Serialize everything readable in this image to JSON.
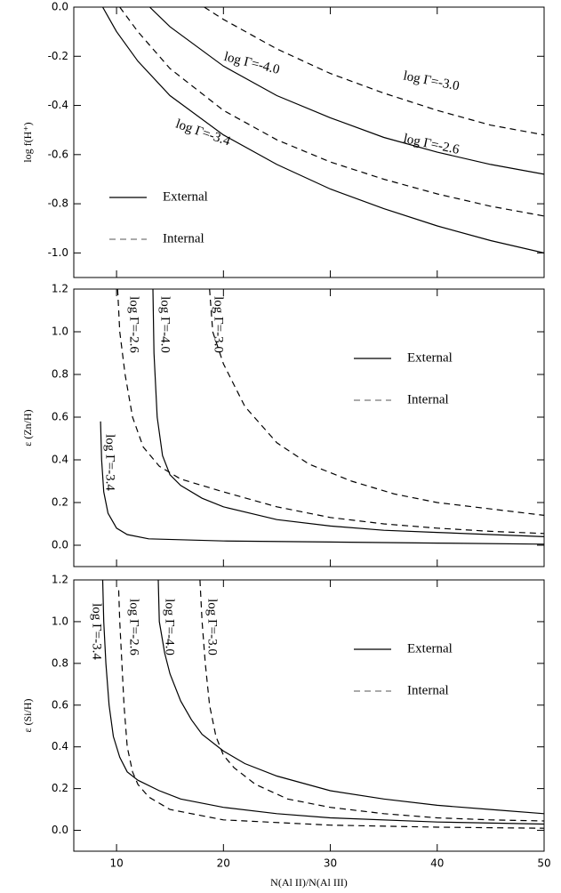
{
  "chart_data": [
    {
      "type": "line",
      "ylabel": "log f(H⁺)",
      "xlim": [
        6,
        50
      ],
      "xticks": [
        10,
        20,
        30,
        40,
        50
      ],
      "xtick_labels": false,
      "ylim": [
        -1.1,
        0.0
      ],
      "yticks": [
        {
          "value": 0,
          "label": "0.0"
        },
        -0.2,
        -0.4,
        -0.6,
        -0.8,
        {
          "value": -1,
          "label": "-1.0"
        }
      ],
      "legend_position": "lower left",
      "color": "#000000",
      "legend": [
        {
          "name": "External",
          "dash": "solid"
        },
        {
          "name": "Internal",
          "dash": "dashed"
        }
      ],
      "series": [
        {
          "name": "log Γ=-3.4",
          "dash": "solid",
          "x": [
            8.7,
            10,
            12,
            15,
            20,
            25,
            30,
            35,
            40,
            45,
            50
          ],
          "values": [
            0,
            -0.1,
            -0.22,
            -0.36,
            -0.52,
            -0.64,
            -0.74,
            -0.82,
            -0.89,
            -0.95,
            -1.0
          ]
        },
        {
          "name": "log Γ=-4.0",
          "dash": "solid",
          "x": [
            13.1,
            15,
            20,
            25,
            30,
            35,
            40,
            45,
            50
          ],
          "values": [
            0,
            -0.08,
            -0.24,
            -0.36,
            -0.45,
            -0.53,
            -0.59,
            -0.64,
            -0.68
          ]
        },
        {
          "name": "log Γ=-2.6",
          "dash": "dashed",
          "x": [
            10.3,
            12,
            15,
            20,
            25,
            30,
            35,
            40,
            45,
            50
          ],
          "values": [
            0,
            -0.1,
            -0.25,
            -0.42,
            -0.54,
            -0.63,
            -0.7,
            -0.76,
            -0.81,
            -0.85
          ]
        },
        {
          "name": "log Γ=-3.0",
          "dash": "dashed",
          "x": [
            18.2,
            20,
            25,
            30,
            35,
            40,
            45,
            50
          ],
          "values": [
            0,
            -0.05,
            -0.17,
            -0.27,
            -0.35,
            -0.42,
            -0.48,
            -0.52
          ]
        }
      ]
    },
    {
      "type": "line",
      "ylabel": "ε (Zn/H)",
      "xlim": [
        6,
        50
      ],
      "xticks": [
        10,
        20,
        30,
        40,
        50
      ],
      "xtick_labels": false,
      "ylim": [
        -0.1,
        1.2
      ],
      "yticks": [
        {
          "value": 0,
          "label": "0.0"
        },
        0.2,
        0.4,
        0.6,
        0.8,
        {
          "value": 1,
          "label": "1.0"
        },
        1.2
      ],
      "legend_position": "upper right",
      "color": "#000000",
      "legend": [
        {
          "name": "External",
          "dash": "solid"
        },
        {
          "name": "Internal",
          "dash": "dashed"
        }
      ],
      "series": [
        {
          "name": "log Γ=-2.6",
          "dash": "dashed",
          "x": [
            10.1,
            10.3,
            10.8,
            11.5,
            12.5,
            14,
            16,
            20,
            25,
            30,
            35,
            40,
            45,
            50
          ],
          "values": [
            1.2,
            1.0,
            0.8,
            0.6,
            0.46,
            0.37,
            0.31,
            0.25,
            0.18,
            0.13,
            0.1,
            0.08,
            0.065,
            0.055
          ]
        },
        {
          "name": "log Γ=-4.0",
          "dash": "solid",
          "x": [
            13.4,
            13.5,
            13.8,
            14.3,
            15,
            16,
            18,
            20,
            25,
            30,
            35,
            40,
            45,
            50
          ],
          "values": [
            1.2,
            0.9,
            0.6,
            0.42,
            0.33,
            0.28,
            0.22,
            0.18,
            0.12,
            0.09,
            0.07,
            0.06,
            0.05,
            0.04
          ]
        },
        {
          "name": "log Γ=-3.0",
          "dash": "dashed",
          "x": [
            18.7,
            19,
            20,
            22,
            25,
            28,
            32,
            36,
            40,
            45,
            50
          ],
          "values": [
            1.2,
            1.0,
            0.85,
            0.65,
            0.48,
            0.38,
            0.3,
            0.24,
            0.2,
            0.17,
            0.14
          ]
        },
        {
          "name": "log Γ=-3.4",
          "dash": "solid",
          "x": [
            8.5,
            8.6,
            8.8,
            9.2,
            10,
            11,
            13,
            20,
            30,
            40,
            50
          ],
          "values": [
            0.58,
            0.4,
            0.25,
            0.15,
            0.08,
            0.05,
            0.03,
            0.02,
            0.015,
            0.01,
            0.005
          ]
        }
      ]
    },
    {
      "type": "line",
      "ylabel": "ε (Si/H)",
      "xlabel": "N(Al II)/N(Al III)",
      "xlim": [
        6,
        50
      ],
      "xticks": [
        10,
        20,
        30,
        40,
        50
      ],
      "xtick_labels": true,
      "ylim": [
        -0.1,
        1.2
      ],
      "yticks": [
        {
          "value": 0,
          "label": "0.0"
        },
        0.2,
        0.4,
        0.6,
        0.8,
        {
          "value": 1,
          "label": "1.0"
        },
        1.2
      ],
      "legend_position": "upper right",
      "color": "#000000",
      "legend": [
        {
          "name": "External",
          "dash": "solid"
        },
        {
          "name": "Internal",
          "dash": "dashed"
        }
      ],
      "series": [
        {
          "name": "log Γ=-2.6",
          "dash": "dashed",
          "x": [
            10.2,
            10.3,
            10.5,
            10.7,
            11,
            11.5,
            12,
            13,
            15,
            20,
            30,
            40,
            50
          ],
          "values": [
            1.15,
            1.0,
            0.8,
            0.6,
            0.4,
            0.28,
            0.22,
            0.16,
            0.1,
            0.05,
            0.025,
            0.015,
            0.01
          ]
        },
        {
          "name": "log Γ=-4.0",
          "dash": "solid",
          "x": [
            13.9,
            14,
            14.5,
            15,
            16,
            17,
            18,
            20,
            22,
            25,
            30,
            35,
            40,
            45,
            50
          ],
          "values": [
            1.2,
            1.0,
            0.85,
            0.75,
            0.62,
            0.53,
            0.46,
            0.38,
            0.32,
            0.26,
            0.19,
            0.15,
            0.12,
            0.1,
            0.08
          ]
        },
        {
          "name": "log Γ=-3.0",
          "dash": "dashed",
          "x": [
            17.8,
            18,
            18.3,
            18.7,
            19.3,
            20,
            21,
            23,
            26,
            30,
            35,
            40,
            45,
            50
          ],
          "values": [
            1.2,
            1.0,
            0.8,
            0.6,
            0.45,
            0.36,
            0.3,
            0.22,
            0.15,
            0.11,
            0.08,
            0.06,
            0.05,
            0.045
          ]
        },
        {
          "name": "log Γ=-3.4",
          "dash": "solid",
          "x": [
            8.7,
            8.8,
            9,
            9.3,
            9.7,
            10.3,
            11,
            12,
            14,
            16,
            20,
            25,
            30,
            40,
            50
          ],
          "values": [
            1.2,
            1.0,
            0.8,
            0.6,
            0.45,
            0.35,
            0.28,
            0.24,
            0.19,
            0.15,
            0.11,
            0.08,
            0.06,
            0.04,
            0.03
          ]
        }
      ]
    }
  ]
}
